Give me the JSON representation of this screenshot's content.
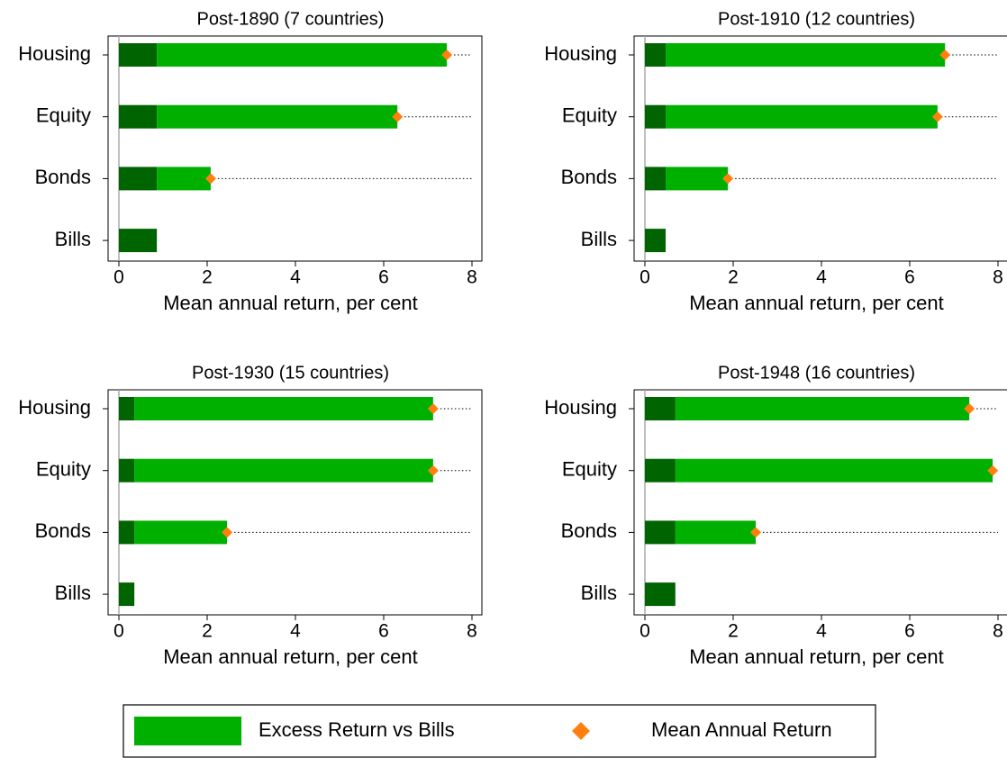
{
  "chart_data": [
    {
      "type": "bar",
      "title": "Post-1890 (7 countries)",
      "xlabel": "Mean annual return, per cent",
      "categories": [
        "Housing",
        "Equity",
        "Bonds",
        "Bills"
      ],
      "base": {
        "color": "#006400",
        "values": [
          0.86,
          0.86,
          0.86,
          0.86
        ]
      },
      "series": [
        {
          "name": "Excess Return vs Bills",
          "color": "#00b000",
          "values": [
            6.57,
            5.45,
            1.22,
            null
          ]
        },
        {
          "name": "Mean Annual Return",
          "color": "#ff7f0e",
          "values": [
            7.43,
            6.31,
            2.08,
            null
          ]
        }
      ],
      "xlim": [
        0,
        8
      ],
      "xticks": [
        0,
        2,
        4,
        6,
        8
      ]
    },
    {
      "type": "bar",
      "title": "Post-1910 (12 countries)",
      "xlabel": "Mean annual return, per cent",
      "categories": [
        "Housing",
        "Equity",
        "Bonds",
        "Bills"
      ],
      "base": {
        "color": "#006400",
        "values": [
          0.47,
          0.47,
          0.47,
          0.47
        ]
      },
      "series": [
        {
          "name": "Excess Return vs Bills",
          "color": "#00b000",
          "values": [
            6.33,
            6.16,
            1.41,
            null
          ]
        },
        {
          "name": "Mean Annual Return",
          "color": "#ff7f0e",
          "values": [
            6.8,
            6.63,
            1.88,
            null
          ]
        }
      ],
      "xlim": [
        0,
        8
      ],
      "xticks": [
        0,
        2,
        4,
        6,
        8
      ]
    },
    {
      "type": "bar",
      "title": "Post-1930 (15 countries)",
      "xlabel": "Mean annual return, per cent",
      "categories": [
        "Housing",
        "Equity",
        "Bonds",
        "Bills"
      ],
      "base": {
        "color": "#006400",
        "values": [
          0.35,
          0.35,
          0.35,
          0.35
        ]
      },
      "series": [
        {
          "name": "Excess Return vs Bills",
          "color": "#00b000",
          "values": [
            6.77,
            6.77,
            2.1,
            null
          ]
        },
        {
          "name": "Mean Annual Return",
          "color": "#ff7f0e",
          "values": [
            7.12,
            7.12,
            2.45,
            null
          ]
        }
      ],
      "xlim": [
        0,
        8
      ],
      "xticks": [
        0,
        2,
        4,
        6,
        8
      ]
    },
    {
      "type": "bar",
      "title": "Post-1948 (16 countries)",
      "xlabel": "Mean annual return, per cent",
      "categories": [
        "Housing",
        "Equity",
        "Bonds",
        "Bills"
      ],
      "base": {
        "color": "#006400",
        "values": [
          0.69,
          0.69,
          0.69,
          0.69
        ]
      },
      "series": [
        {
          "name": "Excess Return vs Bills",
          "color": "#00b000",
          "values": [
            6.66,
            7.19,
            1.82,
            null
          ]
        },
        {
          "name": "Mean Annual Return",
          "color": "#ff7f0e",
          "values": [
            7.35,
            7.88,
            2.51,
            null
          ]
        }
      ],
      "xlim": [
        0,
        8
      ],
      "xticks": [
        0,
        2,
        4,
        6,
        8
      ]
    }
  ]
}
